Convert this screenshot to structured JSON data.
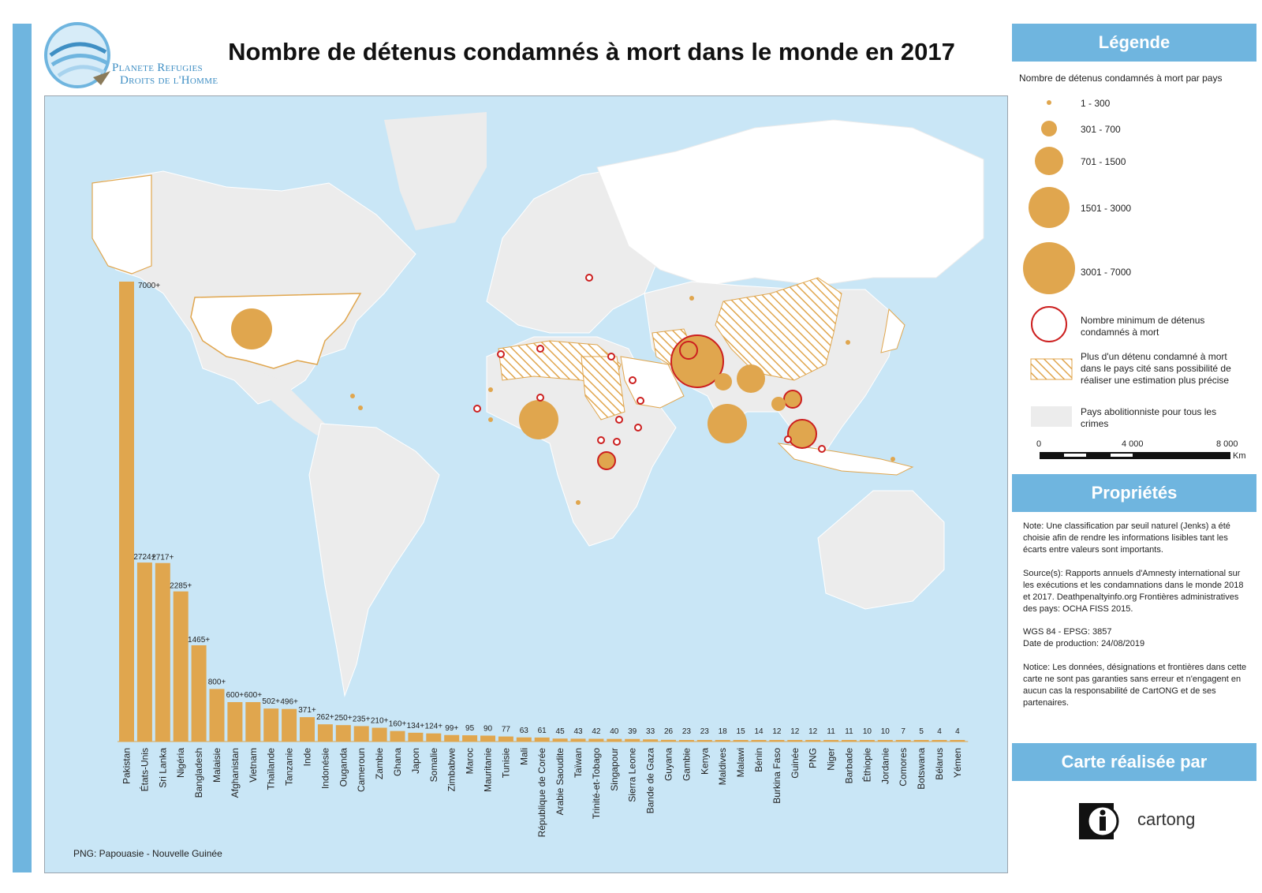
{
  "title": "Nombre de détenus condamnés à mort dans le monde en 2017",
  "logo": {
    "line1": "Planete Refugies",
    "line2": "Droits de l'Homme"
  },
  "legend": {
    "header": "Légende",
    "subtitle": "Nombre de détenus condamnés à mort par pays",
    "classes": [
      "1 - 300",
      "301 - 700",
      "701 - 1500",
      "1501 - 3000",
      "3001 - 7000"
    ],
    "min_label": "Nombre minimum de détenus condamnés à mort",
    "hatch_label": "Plus d'un détenu condamné à mort dans le pays cité sans possibilité de réaliser une estimation plus précise",
    "abol_label": "Pays abolitionniste pour tous les crimes",
    "scale": {
      "zero": "0",
      "mid": "4 000",
      "max": "8 000",
      "unit": "Km"
    },
    "colors": {
      "orange": "#e0a64e",
      "red": "#cc1f1f",
      "water": "#c9e6f6",
      "land": "#ececec",
      "accent": "#6fb5df"
    }
  },
  "properties": {
    "header": "Propriétés",
    "note": "Note: Une classification par seuil naturel (Jenks) a été choisie afin de rendre les informations lisibles tant les écarts entre valeurs sont importants.",
    "sources": "Source(s): Rapports annuels d'Amnesty international sur les exécutions et les condamnations dans le monde 2018 et 2017. Deathpenaltyinfo.org Frontières administratives des pays: OCHA FISS 2015.",
    "crs": "WGS 84 - EPSG: 3857",
    "date": "Date de production: 24/08/2019",
    "notice": "Notice: Les données, désignations et frontières dans cette carte ne sont pas garanties sans erreur et n'engagent en aucun cas la responsabilité de CartONG et de ses partenaires."
  },
  "made_by": {
    "header": "Carte réalisée par",
    "org": "cartong"
  },
  "png_note": "PNG: Papouasie - Nouvelle Guinée",
  "chart_data": {
    "type": "bar",
    "title": "",
    "xlabel": "",
    "ylabel": "",
    "categories": [
      "Pakistan",
      "États-Unis",
      "Sri Lanka",
      "Nigéria",
      "Bangladesh",
      "Malaisie",
      "Afghanistan",
      "Vietnam",
      "Thaïlande",
      "Tanzanie",
      "Inde",
      "Indonésie",
      "Ouganda",
      "Cameroun",
      "Zambie",
      "Ghana",
      "Japon",
      "Somalie",
      "Zimbabwe",
      "Maroc",
      "Mauritanie",
      "Tunisie",
      "Mali",
      "République de Corée",
      "Arabie Saoudite",
      "Taïwan",
      "Trinité-et-Tobago",
      "Singapour",
      "Sierra Leone",
      "Bande de Gaza",
      "Guyana",
      "Gambie",
      "Kenya",
      "Maldives",
      "Malawi",
      "Bénin",
      "Burkina Faso",
      "Guinée",
      "PNG",
      "Niger",
      "Barbade",
      "Éthiopie",
      "Jordanie",
      "Comores",
      "Botswana",
      "Bélarus",
      "Yémen"
    ],
    "values": [
      7000,
      2724,
      2717,
      2285,
      1465,
      800,
      600,
      600,
      502,
      496,
      371,
      262,
      250,
      235,
      210,
      160,
      134,
      124,
      99,
      95,
      90,
      77,
      63,
      61,
      45,
      43,
      42,
      40,
      39,
      33,
      26,
      23,
      23,
      18,
      15,
      14,
      12,
      12,
      12,
      11,
      11,
      10,
      10,
      7,
      5,
      4,
      4
    ],
    "labels": [
      "7000+",
      "2724+",
      "2717+",
      "2285+",
      "1465+",
      "800+",
      "600+",
      "600+",
      "502+",
      "496+",
      "371+",
      "262+",
      "250+",
      "235+",
      "210+",
      "160+",
      "134+",
      "124+",
      "99+",
      "95",
      "90",
      "77",
      "63",
      "61",
      "45",
      "43",
      "42",
      "40",
      "39",
      "33",
      "26",
      "23",
      "23",
      "18",
      "15",
      "14",
      "12",
      "12",
      "12",
      "11",
      "11",
      "10",
      "10",
      "7",
      "5",
      "4",
      "4"
    ],
    "ylim": [
      0,
      7000
    ]
  },
  "map_symbols": [
    {
      "name": "united-states",
      "size": "1501 - 3000",
      "color": "#e0a64e"
    },
    {
      "name": "pakistan",
      "size": "3001 - 7000",
      "color": "#e0a64e",
      "min": true
    },
    {
      "name": "nigeria",
      "size": "1501 - 3000",
      "color": "#e0a64e"
    },
    {
      "name": "sri-lanka",
      "size": "1501 - 3000",
      "color": "#e0a64e"
    },
    {
      "name": "bangladesh",
      "size": "701 - 1500",
      "color": "#e0a64e"
    },
    {
      "name": "malaysia",
      "size": "701 - 1500",
      "color": "#e0a64e",
      "min": true
    }
  ]
}
